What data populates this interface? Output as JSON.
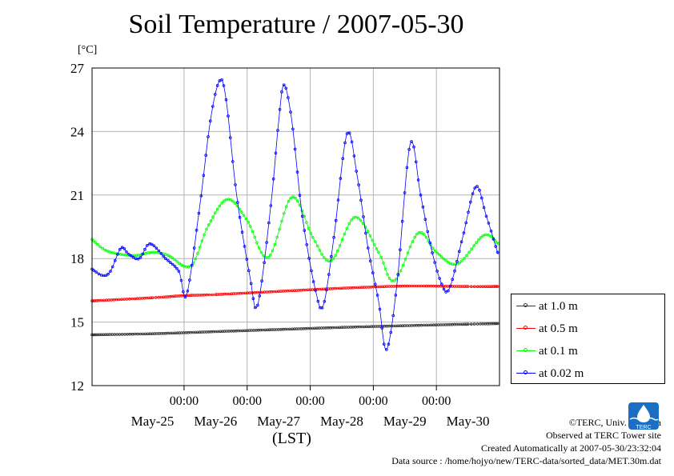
{
  "title": "Soil Temperature / 2007-05-30",
  "unit_label": "[°C]",
  "xlabel": "(LST)",
  "credits": [
    "©TERC, Univ. Tsukuba",
    "Observed at TERC Tower site",
    "Created Automatically at 2007-05-30/23:32:04",
    "Data source : /home/hojyo/new/TERC-data/sorted_data/MET.30m.dat"
  ],
  "logo_text": "TERC",
  "chart_data": {
    "type": "line",
    "title": "Soil Temperature / 2007-05-30",
    "xlabel": "(LST)",
    "ylabel": "[°C]",
    "xlim": [
      "2007-05-24T13:00",
      "2007-05-31T00:00"
    ],
    "ylim": [
      12,
      27
    ],
    "yticks": [
      12,
      15,
      18,
      21,
      24,
      27
    ],
    "xticks": [
      {
        "time": "2007-05-26T00:00",
        "label": "00:00"
      },
      {
        "time": "2007-05-27T00:00",
        "label": "00:00"
      },
      {
        "time": "2007-05-28T00:00",
        "label": "00:00"
      },
      {
        "time": "2007-05-29T00:00",
        "label": "00:00"
      },
      {
        "time": "2007-05-30T00:00",
        "label": "00:00"
      }
    ],
    "date_labels": [
      {
        "time": "2007-05-25T12:00",
        "label": "May-25"
      },
      {
        "time": "2007-05-26T12:00",
        "label": "May-26"
      },
      {
        "time": "2007-05-27T12:00",
        "label": "May-27"
      },
      {
        "time": "2007-05-28T12:00",
        "label": "May-28"
      },
      {
        "time": "2007-05-29T12:00",
        "label": "May-29"
      },
      {
        "time": "2007-05-30T12:00",
        "label": "May-30"
      }
    ],
    "grid": true,
    "legend_position": "right, lower",
    "series": [
      {
        "name": "at 1.0 m",
        "color": "#333333",
        "points": [
          [
            "2007-05-24T13:00",
            14.4
          ],
          [
            "2007-05-25T12:00",
            14.45
          ],
          [
            "2007-05-26T12:00",
            14.55
          ],
          [
            "2007-05-27T12:00",
            14.65
          ],
          [
            "2007-05-28T12:00",
            14.75
          ],
          [
            "2007-05-29T12:00",
            14.83
          ],
          [
            "2007-05-30T12:00",
            14.9
          ],
          [
            "2007-05-30T23:30",
            14.93
          ]
        ]
      },
      {
        "name": "at 0.5 m",
        "color": "#ff0000",
        "points": [
          [
            "2007-05-24T13:00",
            16.0
          ],
          [
            "2007-05-25T12:00",
            16.15
          ],
          [
            "2007-05-26T00:00",
            16.25
          ],
          [
            "2007-05-26T12:00",
            16.3
          ],
          [
            "2007-05-27T12:00",
            16.45
          ],
          [
            "2007-05-28T12:00",
            16.6
          ],
          [
            "2007-05-29T12:00",
            16.7
          ],
          [
            "2007-05-30T12:00",
            16.68
          ],
          [
            "2007-05-30T23:30",
            16.68
          ]
        ]
      },
      {
        "name": "at 0.1 m",
        "color": "#00ff00",
        "points": [
          [
            "2007-05-24T13:00",
            18.9
          ],
          [
            "2007-05-24T18:00",
            18.4
          ],
          [
            "2007-05-25T00:00",
            18.2
          ],
          [
            "2007-05-25T06:00",
            18.15
          ],
          [
            "2007-05-25T12:00",
            18.3
          ],
          [
            "2007-05-25T18:00",
            18.15
          ],
          [
            "2007-05-26T02:30",
            17.65
          ],
          [
            "2007-05-26T09:00",
            19.5
          ],
          [
            "2007-05-26T16:30",
            20.8
          ],
          [
            "2007-05-27T00:00",
            19.8
          ],
          [
            "2007-05-27T08:00",
            18.05
          ],
          [
            "2007-05-27T17:00",
            20.9
          ],
          [
            "2007-05-28T01:00",
            19.0
          ],
          [
            "2007-05-28T08:00",
            17.9
          ],
          [
            "2007-05-28T17:00",
            19.95
          ],
          [
            "2007-05-29T02:00",
            18.3
          ],
          [
            "2007-05-29T08:00",
            16.95
          ],
          [
            "2007-05-29T17:00",
            19.2
          ],
          [
            "2007-05-30T00:00",
            18.3
          ],
          [
            "2007-05-30T08:00",
            17.75
          ],
          [
            "2007-05-30T18:00",
            19.1
          ],
          [
            "2007-05-30T23:30",
            18.7
          ]
        ]
      },
      {
        "name": "at 0.02 m",
        "color": "#0000ff",
        "points": [
          [
            "2007-05-24T13:00",
            17.5
          ],
          [
            "2007-05-24T17:00",
            17.2
          ],
          [
            "2007-05-24T20:00",
            17.4
          ],
          [
            "2007-05-25T00:00",
            18.5
          ],
          [
            "2007-05-25T03:00",
            18.2
          ],
          [
            "2007-05-25T07:00",
            18.0
          ],
          [
            "2007-05-25T11:00",
            18.7
          ],
          [
            "2007-05-25T17:00",
            18.0
          ],
          [
            "2007-05-25T22:00",
            17.4
          ],
          [
            "2007-05-26T01:00",
            16.3
          ],
          [
            "2007-05-26T06:00",
            20.5
          ],
          [
            "2007-05-26T10:00",
            24.5
          ],
          [
            "2007-05-26T13:30",
            26.4
          ],
          [
            "2007-05-26T16:00",
            25.5
          ],
          [
            "2007-05-26T20:00",
            21.0
          ],
          [
            "2007-05-27T01:00",
            17.2
          ],
          [
            "2007-05-27T04:00",
            15.8
          ],
          [
            "2007-05-27T09:00",
            20.5
          ],
          [
            "2007-05-27T12:00",
            24.5
          ],
          [
            "2007-05-27T14:00",
            26.2
          ],
          [
            "2007-05-27T17:00",
            24.5
          ],
          [
            "2007-05-27T21:00",
            20.0
          ],
          [
            "2007-05-28T02:00",
            16.5
          ],
          [
            "2007-05-28T05:00",
            15.8
          ],
          [
            "2007-05-28T09:00",
            19.0
          ],
          [
            "2007-05-28T14:00",
            23.9
          ],
          [
            "2007-05-28T18:00",
            21.8
          ],
          [
            "2007-05-28T22:00",
            18.5
          ],
          [
            "2007-05-29T02:00",
            16.0
          ],
          [
            "2007-05-29T05:00",
            13.7
          ],
          [
            "2007-05-29T09:00",
            16.8
          ],
          [
            "2007-05-29T14:00",
            23.4
          ],
          [
            "2007-05-29T18:00",
            21.0
          ],
          [
            "2007-05-29T22:00",
            18.5
          ],
          [
            "2007-05-30T02:00",
            16.8
          ],
          [
            "2007-05-30T05:00",
            16.6
          ],
          [
            "2007-05-30T10:00",
            19.0
          ],
          [
            "2007-05-30T15:00",
            21.4
          ],
          [
            "2007-05-30T19:00",
            20.0
          ],
          [
            "2007-05-30T23:30",
            18.2
          ]
        ]
      }
    ]
  }
}
